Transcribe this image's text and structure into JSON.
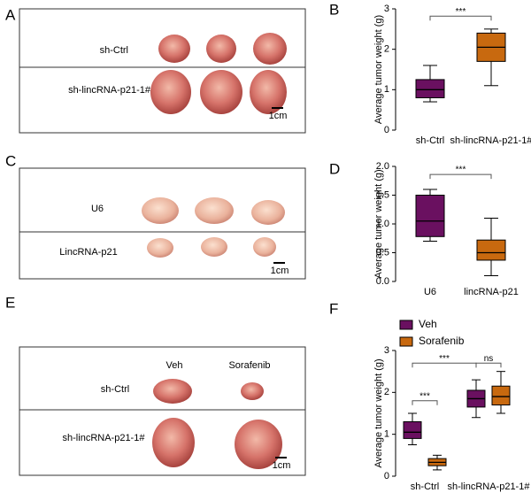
{
  "panel_labels": [
    "A",
    "B",
    "C",
    "D",
    "E",
    "F"
  ],
  "photos": [
    {
      "rows": [
        "sh-Ctrl",
        "sh-lincRNA-p21-1#"
      ],
      "scale": "1cm"
    },
    {
      "rows": [
        "U6",
        "LincRNA-p21"
      ],
      "scale": "1cm"
    },
    {
      "columns": [
        "Veh",
        "Sorafenib"
      ],
      "rows": [
        "sh-Ctrl",
        "sh-lincRNA-p21-1#"
      ],
      "scale": "1cm"
    }
  ],
  "chart_data": [
    {
      "type": "box",
      "y_label": "Average tumor weight (g)",
      "categories": [
        "sh-Ctrl",
        "sh-lincRNA-p21-1#"
      ],
      "colors": [
        "#6a1060",
        "#c8690f"
      ],
      "values": [
        {
          "min": 0.7,
          "q1": 0.8,
          "median": 1.0,
          "q3": 1.25,
          "max": 1.6
        },
        {
          "min": 1.1,
          "q1": 1.7,
          "median": 2.05,
          "q3": 2.4,
          "max": 2.5
        }
      ],
      "ylim": [
        0,
        3
      ],
      "yticks": [
        0,
        1,
        2,
        3
      ],
      "annotations": [
        "***"
      ]
    },
    {
      "type": "box",
      "y_label": "Average tumor weight (g)",
      "categories": [
        "U6",
        "lincRNA-p21"
      ],
      "colors": [
        "#6a1060",
        "#c8690f"
      ],
      "values": [
        {
          "min": 0.7,
          "q1": 0.78,
          "median": 1.05,
          "q3": 1.5,
          "max": 1.6
        },
        {
          "min": 0.1,
          "q1": 0.37,
          "median": 0.5,
          "q3": 0.72,
          "max": 1.1
        }
      ],
      "ylim": [
        0,
        2
      ],
      "yticks": [
        {
          "value": 0,
          "label": "0.0"
        },
        {
          "value": 0.5,
          "label": "0.5"
        },
        {
          "value": 1,
          "label": "1.0"
        },
        {
          "value": 1.5,
          "label": "1.5"
        },
        {
          "value": 2,
          "label": "2.0"
        }
      ],
      "annotations": [
        "***"
      ]
    },
    {
      "type": "box",
      "y_label": "Average tumor weight (g)",
      "categories": [
        "sh-Ctrl",
        "sh-lincRNA-p21-1#"
      ],
      "series": [
        {
          "name": "Veh",
          "color": "#6a1060",
          "values": [
            {
              "min": 0.75,
              "q1": 0.9,
              "median": 1.05,
              "q3": 1.3,
              "max": 1.5
            },
            {
              "min": 1.4,
              "q1": 1.65,
              "median": 1.85,
              "q3": 2.05,
              "max": 2.3
            }
          ]
        },
        {
          "name": "Sorafenib",
          "color": "#c8690f",
          "values": [
            {
              "min": 0.15,
              "q1": 0.25,
              "median": 0.33,
              "q3": 0.42,
              "max": 0.5
            },
            {
              "min": 1.5,
              "q1": 1.7,
              "median": 1.9,
              "q3": 2.15,
              "max": 2.5
            }
          ]
        }
      ],
      "ylim": [
        0,
        3
      ],
      "yticks": [
        0,
        1,
        2,
        3
      ],
      "annotations": [
        "***",
        "***",
        "ns"
      ]
    }
  ]
}
